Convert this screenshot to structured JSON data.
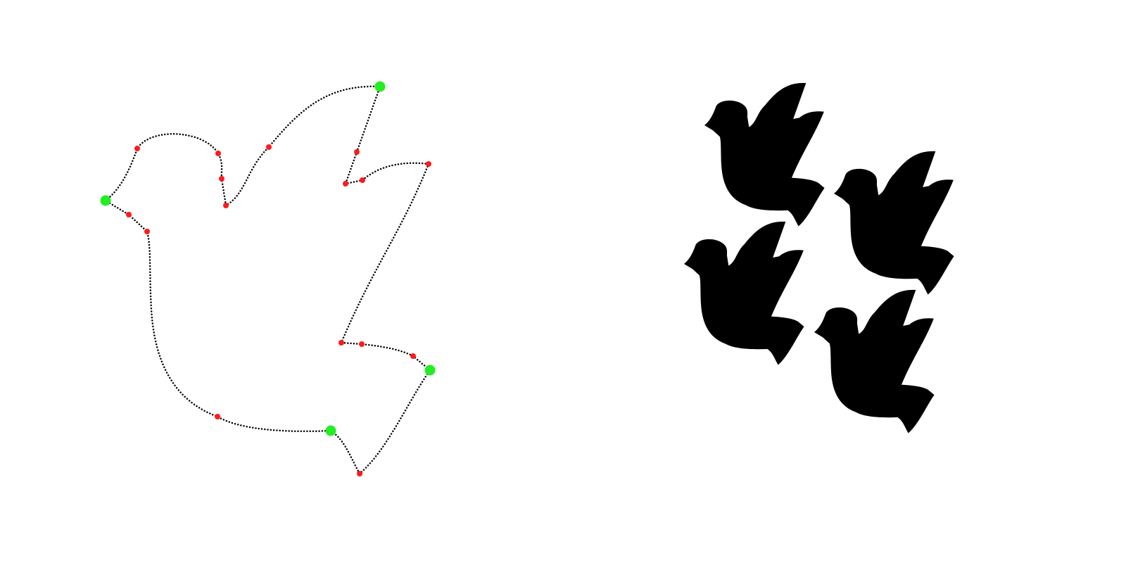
{
  "colors": {
    "background": "#ffffff",
    "outline_dots": "#000000",
    "corner_points": "#ff1a1a",
    "anchor_points": "#22ee22",
    "silhouette_fill": "#000000"
  },
  "figure": {
    "left_panel": "dotted-dove-contour-with-control-points",
    "right_panel": "tessellated-dove-silhouettes",
    "tile_count": 4
  }
}
